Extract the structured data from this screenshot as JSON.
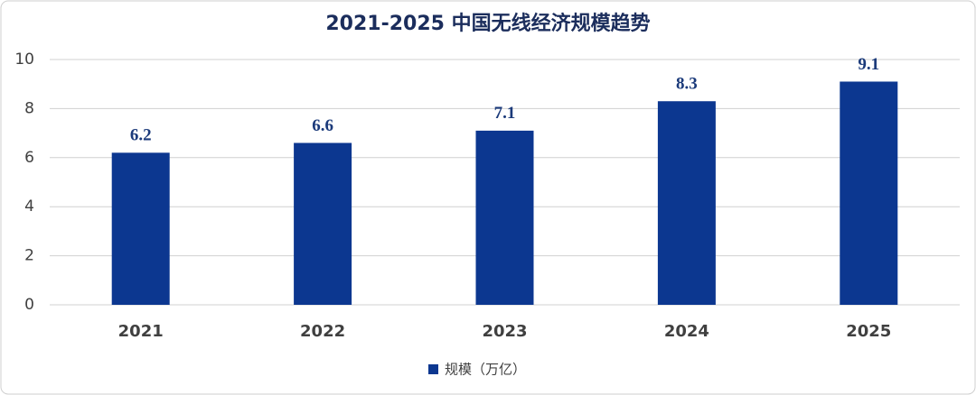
{
  "chart_data": {
    "type": "bar",
    "title": "2021-2025 中国无线经济规模趋势",
    "categories": [
      "2021",
      "2022",
      "2023",
      "2024",
      "2025"
    ],
    "series": [
      {
        "name": "规模（万亿）",
        "color": "#0c3790",
        "values": [
          6.2,
          6.6,
          7.1,
          8.3,
          9.1
        ]
      }
    ],
    "ylim": [
      0,
      10
    ],
    "yticks": [
      0,
      2,
      4,
      6,
      8,
      10
    ],
    "grid": true,
    "legend": "bottom"
  }
}
